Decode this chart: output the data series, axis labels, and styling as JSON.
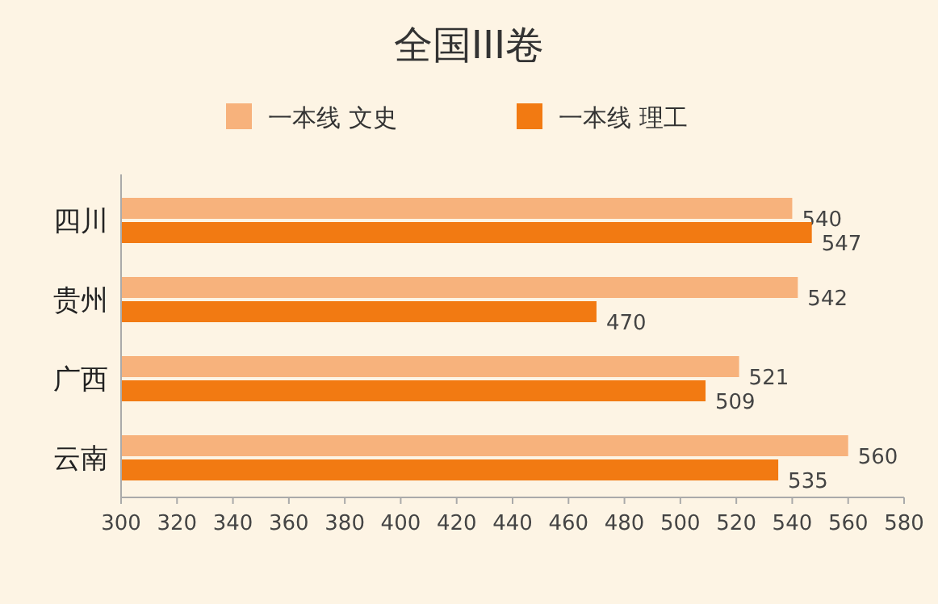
{
  "chart_data": {
    "type": "bar",
    "orientation": "horizontal",
    "title": "全国III卷",
    "categories": [
      "四川",
      "贵州",
      "广西",
      "云南"
    ],
    "series": [
      {
        "name": "一本线 文史",
        "color": "#f7b27c",
        "values": [
          540,
          542,
          521,
          560
        ]
      },
      {
        "name": "一本线 理工",
        "color": "#f27a12",
        "values": [
          547,
          470,
          509,
          535
        ]
      }
    ],
    "xlim": [
      300,
      580
    ],
    "xticks": [
      300,
      320,
      340,
      360,
      380,
      400,
      420,
      440,
      460,
      480,
      500,
      520,
      540,
      560,
      580
    ],
    "data_labels": true,
    "legend": "top",
    "grid": false
  }
}
